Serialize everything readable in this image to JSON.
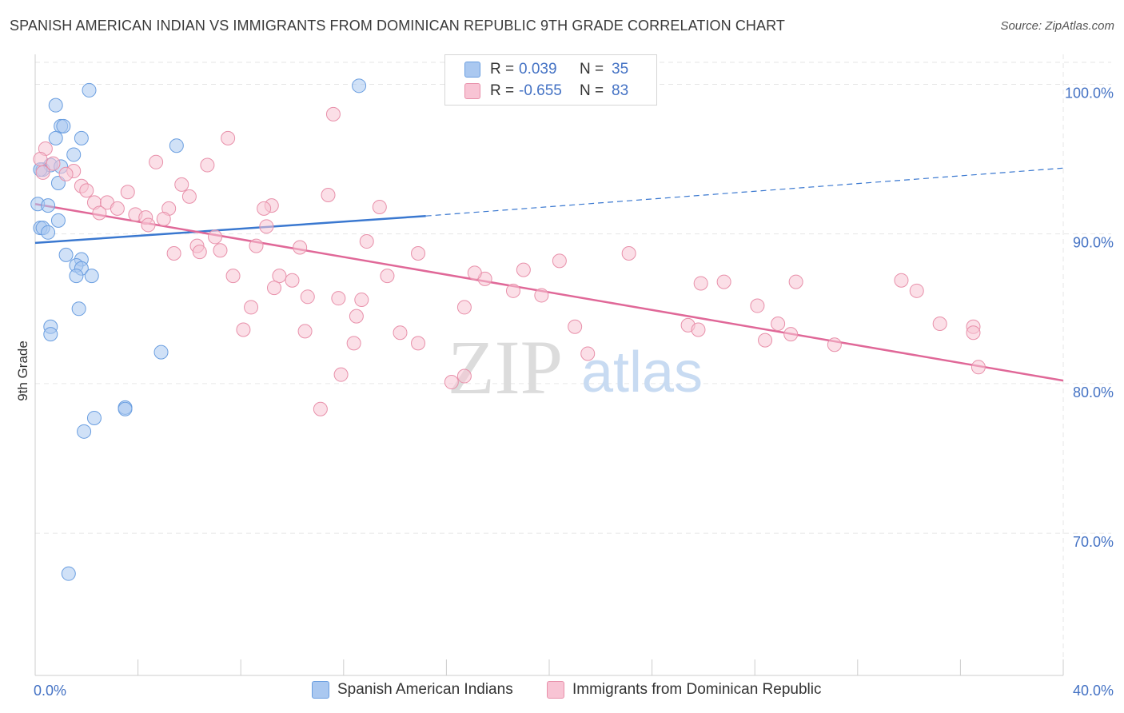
{
  "title": "SPANISH AMERICAN INDIAN VS IMMIGRANTS FROM DOMINICAN REPUBLIC 9TH GRADE CORRELATION CHART",
  "source": "Source: ZipAtlas.com",
  "watermark": {
    "zip": "ZIP",
    "atlas": "atlas"
  },
  "legend": {
    "rows": [
      {
        "r_label": "R =",
        "r_value": "0.039",
        "n_label": "N =",
        "n_value": "35",
        "color": "#aac8f0",
        "border": "#6a9ee0"
      },
      {
        "r_label": "R =",
        "r_value": "-0.655",
        "n_label": "N =",
        "n_value": "83",
        "color": "#f8c4d4",
        "border": "#e890aa"
      }
    ]
  },
  "chart_data": {
    "type": "scatter",
    "title": "SPANISH AMERICAN INDIAN VS IMMIGRANTS FROM DOMINICAN REPUBLIC 9TH GRADE CORRELATION CHART",
    "xlabel": "",
    "ylabel": "9th Grade",
    "xlim": [
      0,
      40
    ],
    "ylim": [
      60.5,
      102
    ],
    "x_tick_labels": [
      "0.0%",
      "40.0%"
    ],
    "y_ticks": [
      100,
      90,
      80,
      70
    ],
    "y_tick_labels": [
      "100.0%",
      "90.0%",
      "80.0%",
      "70.0%"
    ],
    "grid": true,
    "legend_position": "bottom",
    "series": [
      {
        "name": "Spanish American Indians",
        "color": "#6a9ee0",
        "fill": "#aac8f0",
        "trend": {
          "x0": 0,
          "y0": 89.4,
          "x1": 15.2,
          "y1": 91.2,
          "dashed_to_x": 40,
          "dashed_to_y": 94.4,
          "color": "#3a78d0"
        },
        "points": [
          [
            2.1,
            99.6
          ],
          [
            12.6,
            99.9
          ],
          [
            0.8,
            98.6
          ],
          [
            1.0,
            97.2
          ],
          [
            1.1,
            97.2
          ],
          [
            0.8,
            96.4
          ],
          [
            1.8,
            96.4
          ],
          [
            5.5,
            95.9
          ],
          [
            1.5,
            95.3
          ],
          [
            0.3,
            94.3
          ],
          [
            0.6,
            94.6
          ],
          [
            1.0,
            94.5
          ],
          [
            0.2,
            94.3
          ],
          [
            0.9,
            93.4
          ],
          [
            0.1,
            92.0
          ],
          [
            0.5,
            91.9
          ],
          [
            0.9,
            90.9
          ],
          [
            0.2,
            90.4
          ],
          [
            0.3,
            90.4
          ],
          [
            0.5,
            90.1
          ],
          [
            1.2,
            88.6
          ],
          [
            1.8,
            88.3
          ],
          [
            1.6,
            87.9
          ],
          [
            1.8,
            87.7
          ],
          [
            1.6,
            87.2
          ],
          [
            2.2,
            87.2
          ],
          [
            1.7,
            85.0
          ],
          [
            0.6,
            83.8
          ],
          [
            0.6,
            83.3
          ],
          [
            4.9,
            82.1
          ],
          [
            3.5,
            78.4
          ],
          [
            3.5,
            78.3
          ],
          [
            2.3,
            77.7
          ],
          [
            1.9,
            76.8
          ],
          [
            1.3,
            67.3
          ]
        ]
      },
      {
        "name": "Immigrants from Dominican Republic",
        "color": "#e890aa",
        "fill": "#f8c4d4",
        "trend": {
          "x0": 0,
          "y0": 92.0,
          "x1": 40,
          "y1": 80.2,
          "color": "#e06898"
        },
        "points": [
          [
            11.6,
            98.0
          ],
          [
            7.5,
            96.4
          ],
          [
            0.4,
            95.7
          ],
          [
            0.2,
            95.0
          ],
          [
            4.7,
            94.8
          ],
          [
            6.7,
            94.6
          ],
          [
            0.7,
            94.7
          ],
          [
            0.3,
            94.1
          ],
          [
            1.5,
            94.2
          ],
          [
            1.2,
            94.0
          ],
          [
            5.7,
            93.3
          ],
          [
            1.8,
            93.2
          ],
          [
            2.0,
            92.9
          ],
          [
            3.6,
            92.8
          ],
          [
            11.4,
            92.6
          ],
          [
            6.0,
            92.5
          ],
          [
            2.3,
            92.1
          ],
          [
            2.8,
            92.1
          ],
          [
            9.2,
            91.9
          ],
          [
            13.4,
            91.8
          ],
          [
            8.9,
            91.7
          ],
          [
            3.2,
            91.7
          ],
          [
            5.2,
            91.7
          ],
          [
            2.5,
            91.4
          ],
          [
            3.9,
            91.3
          ],
          [
            4.3,
            91.1
          ],
          [
            5.0,
            91.0
          ],
          [
            4.4,
            90.6
          ],
          [
            9.0,
            90.5
          ],
          [
            7.0,
            89.8
          ],
          [
            12.9,
            89.5
          ],
          [
            6.3,
            89.2
          ],
          [
            8.6,
            89.2
          ],
          [
            10.3,
            89.1
          ],
          [
            7.2,
            88.9
          ],
          [
            6.4,
            88.8
          ],
          [
            5.4,
            88.7
          ],
          [
            14.9,
            88.7
          ],
          [
            20.4,
            88.2
          ],
          [
            23.1,
            88.7
          ],
          [
            19.0,
            87.6
          ],
          [
            7.7,
            87.2
          ],
          [
            9.5,
            87.2
          ],
          [
            13.7,
            87.2
          ],
          [
            17.5,
            87.0
          ],
          [
            17.1,
            87.4
          ],
          [
            10.0,
            86.9
          ],
          [
            25.9,
            86.7
          ],
          [
            26.8,
            86.8
          ],
          [
            29.6,
            86.8
          ],
          [
            33.7,
            86.9
          ],
          [
            9.3,
            86.4
          ],
          [
            18.6,
            86.2
          ],
          [
            19.7,
            85.9
          ],
          [
            10.6,
            85.8
          ],
          [
            11.8,
            85.7
          ],
          [
            12.7,
            85.6
          ],
          [
            8.4,
            85.1
          ],
          [
            16.7,
            85.1
          ],
          [
            28.1,
            85.2
          ],
          [
            34.3,
            86.2
          ],
          [
            12.5,
            84.5
          ],
          [
            8.1,
            83.6
          ],
          [
            10.5,
            83.5
          ],
          [
            14.2,
            83.4
          ],
          [
            21.0,
            83.8
          ],
          [
            25.4,
            83.9
          ],
          [
            25.8,
            83.6
          ],
          [
            28.9,
            84.0
          ],
          [
            29.4,
            83.3
          ],
          [
            36.5,
            83.8
          ],
          [
            35.2,
            84.0
          ],
          [
            28.4,
            82.9
          ],
          [
            31.1,
            82.6
          ],
          [
            14.9,
            82.7
          ],
          [
            12.4,
            82.7
          ],
          [
            21.5,
            82.0
          ],
          [
            11.9,
            80.6
          ],
          [
            16.2,
            80.1
          ],
          [
            16.7,
            80.5
          ],
          [
            11.1,
            78.3
          ],
          [
            36.5,
            83.4
          ],
          [
            36.7,
            81.1
          ]
        ]
      }
    ]
  }
}
